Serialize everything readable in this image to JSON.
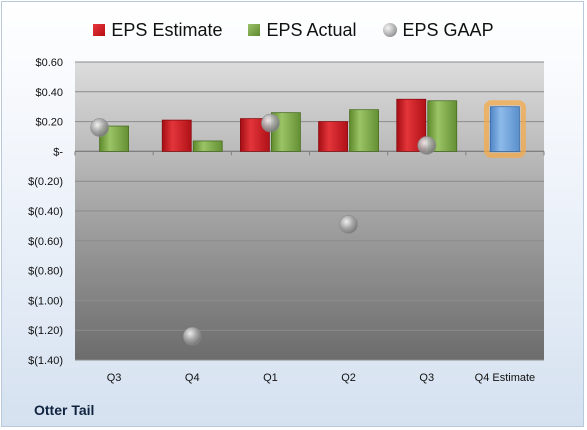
{
  "chart_data": {
    "type": "bar",
    "categories": [
      "Q3",
      "Q4",
      "Q1",
      "Q2",
      "Q3",
      "Q4 Estimate"
    ],
    "series": [
      {
        "name": "EPS Estimate",
        "values": [
          null,
          0.21,
          0.22,
          0.2,
          0.35,
          null
        ],
        "color": "#c8161d"
      },
      {
        "name": "EPS Actual",
        "values": [
          0.17,
          0.07,
          0.26,
          0.28,
          0.34,
          null
        ],
        "color": "#7aa246"
      },
      {
        "name": "EPS GAAP",
        "type": "scatter",
        "values": [
          0.16,
          -1.24,
          0.19,
          -0.49,
          0.04,
          null
        ],
        "color": "#a6a6a6"
      }
    ],
    "forecast": {
      "category": "Q4 Estimate",
      "value": 0.3,
      "color": "#6a9fd8",
      "glow": "#f5a94a"
    },
    "ylim": [
      -1.4,
      0.6
    ],
    "yticks": [
      0.6,
      0.4,
      0.2,
      0,
      -0.2,
      -0.4,
      -0.6,
      -0.8,
      -1.0,
      -1.2,
      -1.4
    ],
    "ytick_labels": [
      "$0.60",
      "$0.40",
      "$0.20",
      "$-",
      "$(0.20)",
      "$(0.40)",
      "$(0.60)",
      "$(0.80)",
      "$(1.00)",
      "$(1.20)",
      "$(1.40)"
    ],
    "grid": true,
    "legend": "top-center"
  },
  "company": "Otter Tail"
}
